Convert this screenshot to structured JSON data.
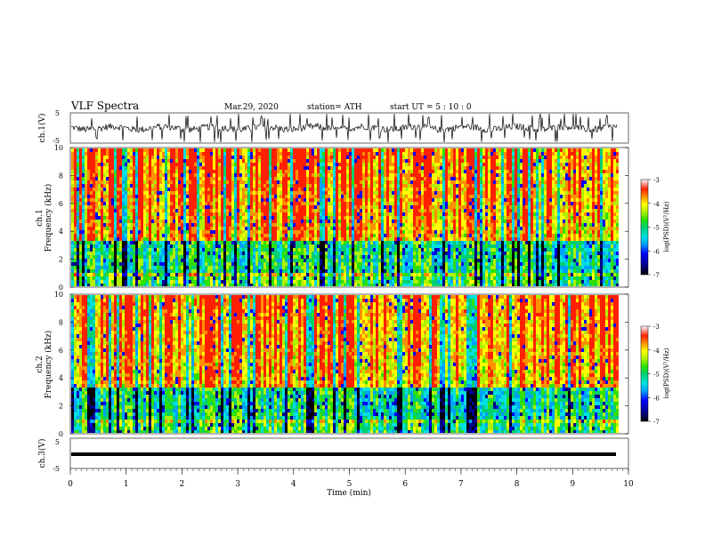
{
  "header": {
    "title": "VLF  Spectra",
    "date": "Mar.29, 2020",
    "station": "station= ATH",
    "start": "start  UT  =   5  : 10 : 0"
  },
  "colors": {
    "colormap": [
      "#000000",
      "#00008b",
      "#0000ff",
      "#00a0ff",
      "#00e0e0",
      "#00d070",
      "#30e000",
      "#b0f000",
      "#ffff00",
      "#ff9000",
      "#ff2000",
      "#ffffff"
    ]
  },
  "chart_data": [
    {
      "type": "line",
      "ylabel": "ch.1(V)",
      "ylim": [
        -5,
        5
      ],
      "yticks": [
        "5",
        "-5"
      ],
      "xlim": [
        0,
        10
      ]
    },
    {
      "type": "heatmap",
      "ylabel_top": "ch.1",
      "ylabel": "Frequency (kHz)",
      "ylim": [
        0,
        10
      ],
      "yticks": [
        "0",
        "2",
        "4",
        "6",
        "8",
        "10"
      ],
      "colorbar": {
        "label": "log(PSD)(V²/Hz)",
        "range": [
          -7,
          -3
        ],
        "ticks": [
          "-3",
          "-4",
          "-5",
          "-6",
          "-7"
        ]
      }
    },
    {
      "type": "heatmap",
      "ylabel_top": "ch.2",
      "ylabel": "Frequency (kHz)",
      "ylim": [
        0,
        10
      ],
      "yticks": [
        "0",
        "2",
        "4",
        "6",
        "8",
        "10"
      ],
      "colorbar": {
        "label": "log(PSD)(V²/Hz)",
        "range": [
          -7,
          -3
        ],
        "ticks": [
          "-3",
          "-4",
          "-5",
          "-6",
          "-7"
        ]
      }
    },
    {
      "type": "line",
      "ylabel": "ch.3(V)",
      "ylim": [
        -5,
        5
      ],
      "yticks": [
        "5",
        "-5"
      ],
      "xlim": [
        0,
        10
      ],
      "xlabel": "Time  (min)",
      "xticks": [
        "0",
        "1",
        "2",
        "3",
        "4",
        "5",
        "6",
        "7",
        "8",
        "9",
        "10"
      ],
      "data_end_min": 9.8
    }
  ]
}
